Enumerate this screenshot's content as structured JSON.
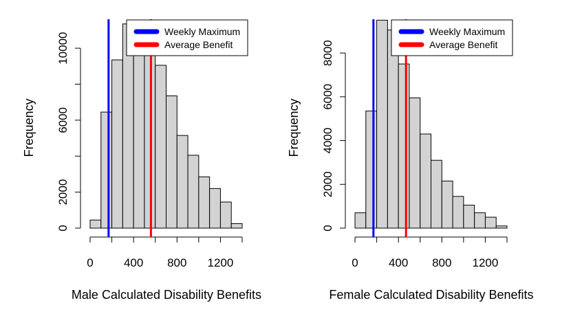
{
  "chart_data": [
    {
      "type": "bar",
      "xlabel": "Male Calculated Disability Benefits",
      "ylabel": "Frequency",
      "bin_edges": [
        0,
        100,
        200,
        300,
        400,
        500,
        600,
        700,
        800,
        900,
        1000,
        1100,
        1200,
        1300,
        1400
      ],
      "values": [
        450,
        6450,
        9350,
        11350,
        11250,
        10750,
        9050,
        7350,
        5150,
        4050,
        2850,
        2200,
        1450,
        250
      ],
      "xlim": [
        0,
        1400
      ],
      "ylim": [
        0,
        11800
      ],
      "xticks": [
        0,
        400,
        800,
        1200
      ],
      "yticks": [
        0,
        2000,
        6000,
        10000
      ],
      "vlines": [
        {
          "name": "Weekly Maximum",
          "x": 170,
          "color": "#0000ff"
        },
        {
          "name": "Average Benefit",
          "x": 560,
          "color": "#ff0000"
        }
      ],
      "legend": {
        "position": "top-right",
        "entries": [
          "Weekly Maximum",
          "Average Benefit"
        ]
      },
      "bar_fill": "#d3d3d3"
    },
    {
      "type": "bar",
      "xlabel": "Female Calculated Disability Benefits",
      "ylabel": "Frequency",
      "bin_edges": [
        0,
        100,
        200,
        300,
        400,
        500,
        600,
        700,
        800,
        900,
        1000,
        1100,
        1200,
        1300,
        1400
      ],
      "values": [
        700,
        5350,
        9500,
        9050,
        7500,
        5950,
        4300,
        3100,
        2150,
        1450,
        1050,
        700,
        500,
        100
      ],
      "xlim": [
        0,
        1400
      ],
      "ylim": [
        0,
        9700
      ],
      "xticks": [
        0,
        400,
        800,
        1200
      ],
      "yticks": [
        0,
        2000,
        4000,
        6000,
        8000
      ],
      "vlines": [
        {
          "name": "Weekly Maximum",
          "x": 170,
          "color": "#0000ff"
        },
        {
          "name": "Average Benefit",
          "x": 470,
          "color": "#ff0000"
        }
      ],
      "legend": {
        "position": "top-right",
        "entries": [
          "Weekly Maximum",
          "Average Benefit"
        ]
      },
      "bar_fill": "#d3d3d3"
    }
  ]
}
